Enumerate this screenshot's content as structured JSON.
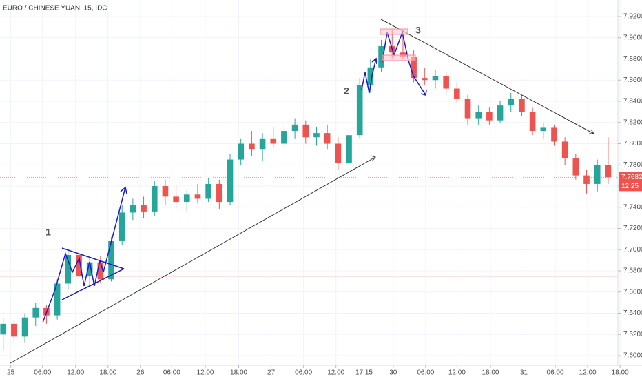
{
  "chart_data": {
    "type": "candlestick",
    "title": "EURO / CHINESE YUAN, 15, IDC",
    "colors": {
      "up": "#26a69a",
      "down": "#ef5350"
    },
    "x": [
      0,
      1,
      2,
      3,
      4,
      5,
      6,
      7,
      8,
      9,
      10,
      11,
      12,
      13,
      14,
      15,
      16,
      17,
      18,
      19,
      20,
      21,
      22,
      23,
      24,
      25,
      26,
      27,
      28,
      29,
      30,
      31,
      32,
      33,
      34,
      35,
      36,
      37,
      38,
      39,
      40,
      41,
      42,
      43,
      44,
      45,
      46,
      47,
      48,
      49,
      50,
      51,
      52,
      53,
      54,
      55,
      56
    ],
    "ohlc": [
      [
        7.62,
        7.635,
        7.605,
        7.63
      ],
      [
        7.63,
        7.634,
        7.612,
        7.618
      ],
      [
        7.618,
        7.64,
        7.612,
        7.636
      ],
      [
        7.636,
        7.65,
        7.628,
        7.645
      ],
      [
        7.645,
        7.648,
        7.63,
        7.638
      ],
      [
        7.638,
        7.672,
        7.634,
        7.668
      ],
      [
        7.668,
        7.7,
        7.662,
        7.695
      ],
      [
        7.695,
        7.698,
        7.668,
        7.675
      ],
      [
        7.675,
        7.692,
        7.665,
        7.688
      ],
      [
        7.688,
        7.694,
        7.668,
        7.672
      ],
      [
        7.672,
        7.712,
        7.67,
        7.708
      ],
      [
        7.708,
        7.742,
        7.704,
        7.735
      ],
      [
        7.735,
        7.748,
        7.728,
        7.742
      ],
      [
        7.742,
        7.75,
        7.73,
        7.736
      ],
      [
        7.736,
        7.765,
        7.732,
        7.76
      ],
      [
        7.76,
        7.766,
        7.742,
        7.75
      ],
      [
        7.75,
        7.76,
        7.738,
        7.745
      ],
      [
        7.745,
        7.756,
        7.735,
        7.752
      ],
      [
        7.752,
        7.762,
        7.744,
        7.748
      ],
      [
        7.748,
        7.768,
        7.745,
        7.762
      ],
      [
        7.762,
        7.766,
        7.738,
        7.745
      ],
      [
        7.745,
        7.79,
        7.742,
        7.785
      ],
      [
        7.785,
        7.805,
        7.78,
        7.8
      ],
      [
        7.8,
        7.812,
        7.788,
        7.795
      ],
      [
        7.795,
        7.81,
        7.784,
        7.805
      ],
      [
        7.805,
        7.815,
        7.796,
        7.8
      ],
      [
        7.8,
        7.818,
        7.795,
        7.812
      ],
      [
        7.812,
        7.824,
        7.805,
        7.818
      ],
      [
        7.818,
        7.822,
        7.8,
        7.806
      ],
      [
        7.806,
        7.816,
        7.798,
        7.81
      ],
      [
        7.81,
        7.818,
        7.795,
        7.8
      ],
      [
        7.8,
        7.806,
        7.775,
        7.782
      ],
      [
        7.782,
        7.812,
        7.772,
        7.808
      ],
      [
        7.808,
        7.862,
        7.805,
        7.855
      ],
      [
        7.855,
        7.88,
        7.848,
        7.872
      ],
      [
        7.872,
        7.898,
        7.868,
        7.892
      ],
      [
        7.892,
        7.908,
        7.88,
        7.886
      ],
      [
        7.886,
        7.905,
        7.88,
        7.882
      ],
      [
        7.882,
        7.888,
        7.858,
        7.862
      ],
      [
        7.862,
        7.872,
        7.855,
        7.86
      ],
      [
        7.86,
        7.87,
        7.852,
        7.864
      ],
      [
        7.864,
        7.868,
        7.846,
        7.852
      ],
      [
        7.852,
        7.858,
        7.838,
        7.842
      ],
      [
        7.842,
        7.846,
        7.818,
        7.824
      ],
      [
        7.824,
        7.836,
        7.818,
        7.83
      ],
      [
        7.83,
        7.834,
        7.818,
        7.822
      ],
      [
        7.822,
        7.84,
        7.82,
        7.836
      ],
      [
        7.836,
        7.848,
        7.83,
        7.842
      ],
      [
        7.842,
        7.846,
        7.826,
        7.83
      ],
      [
        7.83,
        7.834,
        7.808,
        7.812
      ],
      [
        7.812,
        7.82,
        7.804,
        7.815
      ],
      [
        7.815,
        7.818,
        7.798,
        7.802
      ],
      [
        7.802,
        7.806,
        7.78,
        7.786
      ],
      [
        7.786,
        7.79,
        7.766,
        7.77
      ],
      [
        7.77,
        7.775,
        7.753,
        7.762
      ],
      [
        7.762,
        7.785,
        7.755,
        7.78
      ],
      [
        7.78,
        7.806,
        7.762,
        7.7682
      ]
    ],
    "xlim": [
      -0.3,
      56.9
    ],
    "xticks": [
      {
        "value": 0.7,
        "label": "25"
      },
      {
        "value": 3.64,
        "label": "06:00"
      },
      {
        "value": 6.7,
        "label": "12:00"
      },
      {
        "value": 9.7,
        "label": "18:00"
      },
      {
        "value": 12.7,
        "label": "26"
      },
      {
        "value": 15.6,
        "label": "06:00"
      },
      {
        "value": 18.7,
        "label": "12:00"
      },
      {
        "value": 21.8,
        "label": "18:00"
      },
      {
        "value": 24.8,
        "label": "27"
      },
      {
        "value": 27.8,
        "label": "06:00"
      },
      {
        "value": 30.8,
        "label": "12:00"
      },
      {
        "value": 33.4,
        "label": "17:15"
      },
      {
        "value": 36.1,
        "label": "30"
      },
      {
        "value": 39.1,
        "label": "06:00"
      },
      {
        "value": 42.0,
        "label": "12:00"
      },
      {
        "value": 45.1,
        "label": "18:00"
      },
      {
        "value": 48.2,
        "label": "31"
      },
      {
        "value": 51.1,
        "label": "06:00"
      },
      {
        "value": 54.1,
        "label": "12:00"
      },
      {
        "value": 57.1,
        "label": "18:00"
      }
    ],
    "ylim": [
      7.5909,
      7.9356
    ],
    "yticks": [
      {
        "value": 7.6,
        "label": "7.6000"
      },
      {
        "value": 7.62,
        "label": "7.6200"
      },
      {
        "value": 7.64,
        "label": "7.6400"
      },
      {
        "value": 7.66,
        "label": "7.6600"
      },
      {
        "value": 7.68,
        "label": "7.6800"
      },
      {
        "value": 7.7,
        "label": "7.7000"
      },
      {
        "value": 7.72,
        "label": "7.7200"
      },
      {
        "value": 7.74,
        "label": "7.7400"
      },
      {
        "value": 7.76,
        "label": "7.7600"
      },
      {
        "value": 7.78,
        "label": "7.7800"
      },
      {
        "value": 7.8,
        "label": "7.8000"
      },
      {
        "value": 7.82,
        "label": "7.8200"
      },
      {
        "value": 7.84,
        "label": "7.8400"
      },
      {
        "value": 7.86,
        "label": "7.8600"
      },
      {
        "value": 7.88,
        "label": "7.8800"
      },
      {
        "value": 7.9,
        "label": "7.9000"
      },
      {
        "value": 7.92,
        "label": "7.9200"
      }
    ],
    "last_price": {
      "value": 7.7682,
      "label": "7.7682"
    },
    "countdown": "12:25",
    "level": 7.675,
    "annotations": [
      "1",
      "2",
      "3"
    ],
    "grid": true
  }
}
